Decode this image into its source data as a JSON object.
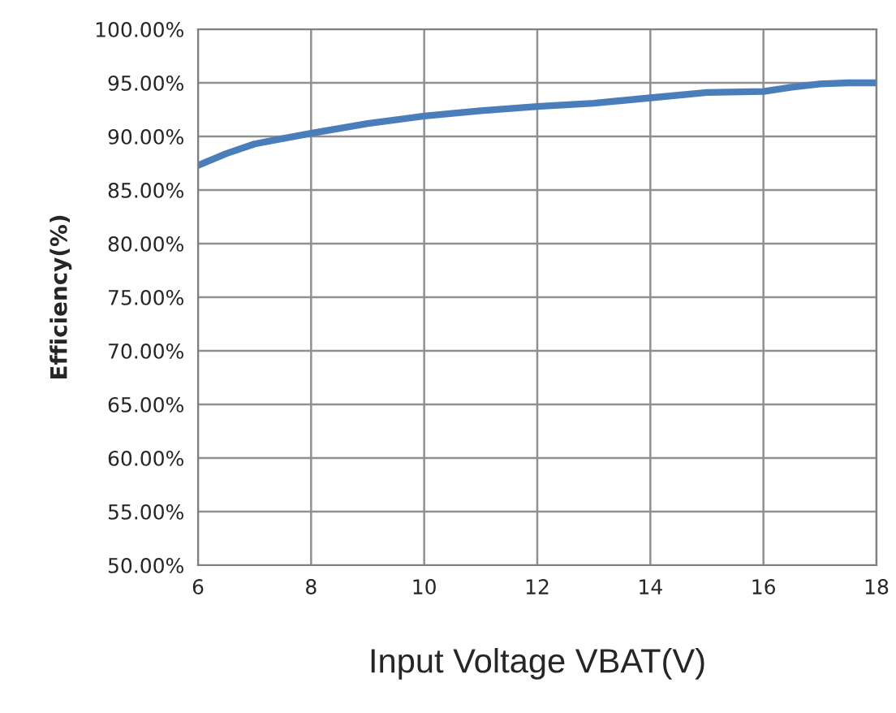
{
  "chart_data": {
    "type": "line",
    "xlabel": "Input Voltage VBAT(V)",
    "ylabel": "Efficiency(%)",
    "x": [
      6,
      6.5,
      7,
      7.5,
      8,
      9,
      10,
      11,
      12,
      13,
      14,
      15,
      16,
      16.5,
      17,
      17.5,
      18
    ],
    "series": [
      {
        "color": "#4a7ebb",
        "values": [
          87.3,
          88.4,
          89.3,
          89.8,
          90.3,
          91.2,
          91.9,
          92.4,
          92.8,
          93.1,
          93.6,
          94.1,
          94.2,
          94.6,
          94.9,
          95.0,
          95.0
        ]
      }
    ],
    "xlim": [
      6,
      18
    ],
    "xticks": [
      6,
      8,
      10,
      12,
      14,
      16,
      18
    ],
    "ylim": [
      50,
      100
    ],
    "yticks": [
      {
        "value": 50,
        "label": "50.00%"
      },
      {
        "value": 55,
        "label": "55.00%"
      },
      {
        "value": 60,
        "label": "60.00%"
      },
      {
        "value": 65,
        "label": "65.00%"
      },
      {
        "value": 70,
        "label": "70.00%"
      },
      {
        "value": 75,
        "label": "75.00%"
      },
      {
        "value": 80,
        "label": "80.00%"
      },
      {
        "value": 85,
        "label": "85.00%"
      },
      {
        "value": 90,
        "label": "90.00%"
      },
      {
        "value": 95,
        "label": "95.00%"
      },
      {
        "value": 100,
        "label": "100.00%"
      }
    ],
    "grid": true,
    "marker": "none",
    "line_style": "solid"
  }
}
